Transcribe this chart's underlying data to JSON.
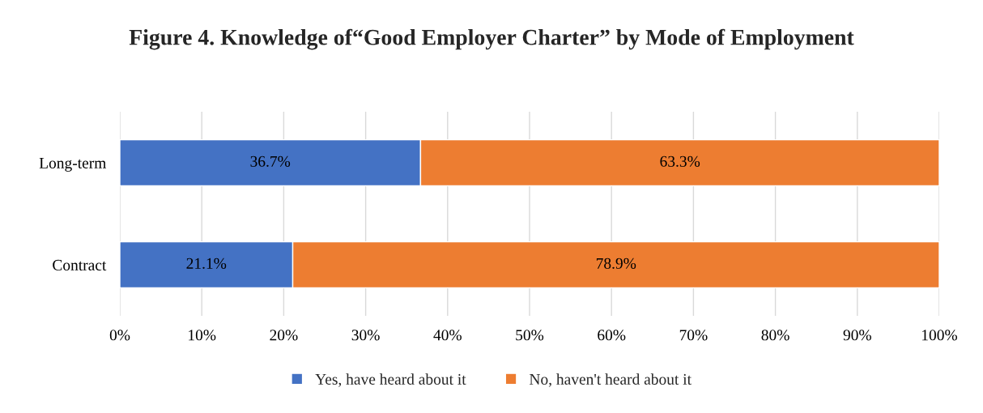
{
  "chart_data": {
    "type": "bar",
    "orientation": "horizontal",
    "stacked": true,
    "title": "Figure 4. Knowledge of“Good Employer Charter” by Mode of Employment",
    "categories": [
      "Long-term",
      "Contract"
    ],
    "series": [
      {
        "name": "Yes, have heard about it",
        "color": "#4472c4",
        "values": [
          36.7,
          21.1
        ],
        "value_labels": [
          "36.7%",
          "21.1%"
        ]
      },
      {
        "name": "No, haven't heard about it",
        "color": "#ed7d31",
        "values": [
          63.3,
          78.9
        ],
        "value_labels": [
          "63.3%",
          "78.9%"
        ]
      }
    ],
    "xlim": [
      0,
      100
    ],
    "xticks": [
      {
        "value": 0,
        "label": "0%"
      },
      {
        "value": 10,
        "label": "10%"
      },
      {
        "value": 20,
        "label": "20%"
      },
      {
        "value": 30,
        "label": "30%"
      },
      {
        "value": 40,
        "label": "40%"
      },
      {
        "value": 50,
        "label": "50%"
      },
      {
        "value": 60,
        "label": "60%"
      },
      {
        "value": 70,
        "label": "70%"
      },
      {
        "value": 80,
        "label": "80%"
      },
      {
        "value": 90,
        "label": "90%"
      },
      {
        "value": 100,
        "label": "100%"
      }
    ],
    "grid": "x",
    "legend": "bottom"
  }
}
